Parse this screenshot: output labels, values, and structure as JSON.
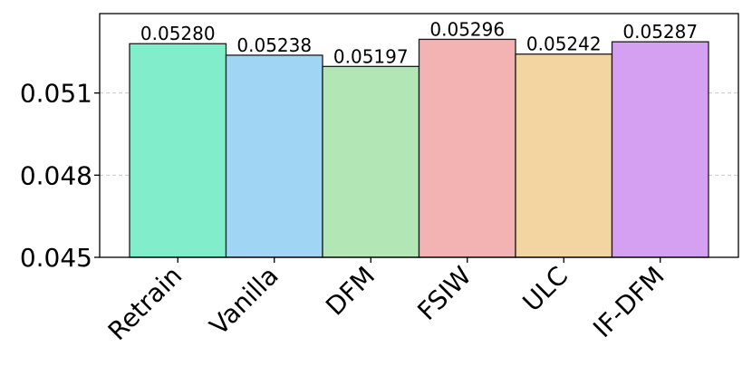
{
  "chart_data": {
    "type": "bar",
    "title": "",
    "xlabel": "",
    "ylabel": "",
    "categories": [
      "Retrain",
      "Vanilla",
      "DFM",
      "FSIW",
      "ULC",
      "IF-DFM"
    ],
    "values": [
      0.0528,
      0.05238,
      0.05197,
      0.05296,
      0.05242,
      0.05287
    ],
    "value_labels": [
      "0.05280",
      "0.05238",
      "0.05197",
      "0.05296",
      "0.05242",
      "0.05287"
    ],
    "colors": [
      "#82edca",
      "#a0d6f4",
      "#b2e6b5",
      "#f2b3b2",
      "#f2d5a1",
      "#d6a0f2"
    ],
    "ylim": [
      0.045,
      0.0539
    ],
    "yticks": [
      0.045,
      0.048,
      0.051
    ],
    "ytick_labels": [
      "0.045",
      "0.048",
      "0.051"
    ],
    "grid": true,
    "legend": "none"
  }
}
